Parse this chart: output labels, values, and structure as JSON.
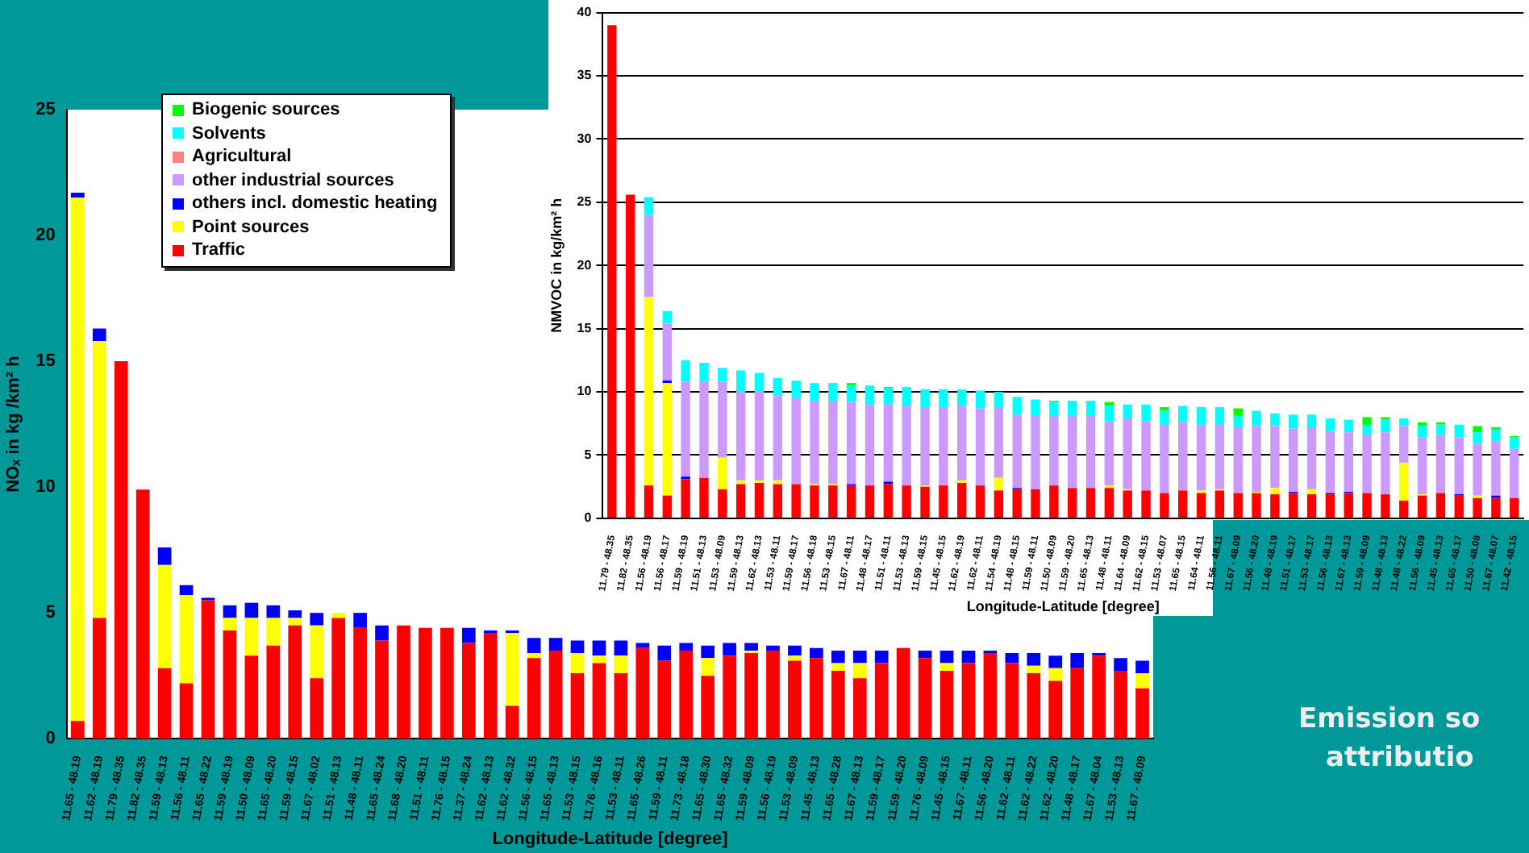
{
  "chart_data": [
    {
      "type": "bar",
      "stacked": true,
      "xlabel": "Longitude-Latitude [degree]",
      "ylabel": "NOₓ in kg /km² h",
      "ylim": [
        0,
        25
      ],
      "yticks": [
        0,
        5,
        10,
        15,
        20,
        25
      ],
      "legend": "top left",
      "categories": [
        "11.65 - 48.19",
        "11.62 - 48.19",
        "11.79 - 48.35",
        "11.82 - 48.35",
        "11.59 - 48.13",
        "11.56 - 48.11",
        "11.65 - 48.22",
        "11.59 - 48.19",
        "11.50 - 48.09",
        "11.65 - 48.20",
        "11.59 - 48.15",
        "11.67 - 48.02",
        "11.51 - 48.13",
        "11.48 - 48.11",
        "11.65 - 48.24",
        "11.68 - 48.20",
        "11.51 - 48.11",
        "11.76 - 48.15",
        "11.37 - 48.24",
        "11.62 - 48.13",
        "11.62 - 48.32",
        "11.56 - 48.15",
        "11.65 - 48.13",
        "11.53 - 48.15",
        "11.76 - 48.16",
        "11.53 - 48.11",
        "11.65 - 48.26",
        "11.59 - 48.11",
        "11.73 - 48.18",
        "11.65 - 48.30",
        "11.65 - 48.32",
        "11.59 - 48.09",
        "11.56 - 48.19",
        "11.53 - 48.09",
        "11.45 - 48.13",
        "11.65 - 48.28",
        "11.67 - 48.13",
        "11.59 - 48.17",
        "11.59 - 48.20",
        "11.76 - 48.09",
        "11.45 - 48.15",
        "11.67 - 48.11",
        "11.56 - 48.20",
        "11.62 - 48.11",
        "11.62 - 48.22",
        "11.62 - 48.20",
        "11.48 - 48.17",
        "11.67 - 48.04",
        "11.53 - 48.13",
        "11.67 - 48.09"
      ],
      "series": [
        {
          "name": "Traffic",
          "color": "#ff0000",
          "values": [
            0.7,
            4.8,
            15.0,
            9.9,
            2.8,
            2.2,
            5.5,
            4.3,
            3.3,
            3.7,
            4.5,
            2.4,
            4.8,
            4.4,
            3.9,
            4.5,
            4.4,
            4.4,
            3.8,
            4.2,
            1.3,
            3.2,
            3.5,
            2.6,
            3.0,
            2.6,
            3.6,
            3.1,
            3.5,
            2.5,
            3.3,
            3.4,
            3.5,
            3.1,
            3.2,
            2.7,
            2.4,
            3.0,
            3.6,
            3.2,
            2.7,
            3.0,
            3.4,
            3.0,
            2.6,
            2.3,
            2.8,
            3.3,
            2.7,
            2.0
          ]
        },
        {
          "name": "Point sources",
          "color": "#ffff00",
          "values": [
            20.8,
            11.0,
            null,
            null,
            4.1,
            3.5,
            null,
            0.5,
            1.5,
            1.1,
            0.3,
            2.1,
            0.2,
            null,
            null,
            null,
            null,
            null,
            null,
            null,
            2.9,
            0.2,
            null,
            0.8,
            0.3,
            0.7,
            null,
            null,
            null,
            0.7,
            null,
            0.1,
            null,
            0.2,
            null,
            0.3,
            0.6,
            null,
            null,
            null,
            0.3,
            null,
            null,
            null,
            0.3,
            0.5,
            null,
            null,
            null,
            0.6
          ]
        },
        {
          "name": "others incl. domestic heating",
          "color": "#0000ff",
          "values": [
            0.2,
            0.5,
            null,
            null,
            0.7,
            0.4,
            0.1,
            0.5,
            0.6,
            0.5,
            0.3,
            0.5,
            null,
            0.6,
            0.6,
            null,
            null,
            null,
            0.6,
            0.1,
            0.1,
            0.6,
            0.5,
            0.5,
            0.6,
            0.6,
            0.2,
            0.6,
            0.3,
            0.5,
            0.5,
            0.3,
            0.2,
            0.4,
            0.4,
            0.5,
            0.5,
            0.5,
            null,
            0.3,
            0.5,
            0.5,
            0.1,
            0.4,
            0.5,
            0.5,
            0.6,
            0.1,
            0.5,
            0.5
          ]
        },
        {
          "name": "other industrial sources",
          "color": "#cc99ff",
          "values": [
            null,
            null,
            null,
            null,
            null,
            null,
            null,
            null,
            null,
            null,
            null,
            null,
            null,
            null,
            null,
            null,
            null,
            null,
            null,
            null,
            null,
            null,
            null,
            null,
            null,
            null,
            null,
            null,
            null,
            null,
            null,
            null,
            null,
            null,
            null,
            null,
            null,
            null,
            null,
            null,
            null,
            null,
            null,
            null,
            null,
            null,
            null,
            null,
            null,
            null
          ]
        },
        {
          "name": "Agricultural",
          "color": "#ff8080",
          "values": [
            null,
            null,
            null,
            null,
            null,
            null,
            null,
            null,
            null,
            null,
            null,
            null,
            null,
            null,
            null,
            null,
            null,
            null,
            null,
            null,
            null,
            null,
            null,
            null,
            null,
            null,
            null,
            null,
            null,
            null,
            null,
            null,
            null,
            null,
            null,
            null,
            null,
            null,
            null,
            null,
            null,
            null,
            null,
            null,
            null,
            null,
            null,
            null,
            null,
            null
          ]
        },
        {
          "name": "Solvents",
          "color": "#00ffff",
          "values": [
            null,
            null,
            null,
            null,
            null,
            null,
            null,
            null,
            null,
            null,
            null,
            null,
            null,
            null,
            null,
            null,
            null,
            null,
            null,
            null,
            null,
            null,
            null,
            null,
            null,
            null,
            null,
            null,
            null,
            null,
            null,
            null,
            null,
            null,
            null,
            null,
            null,
            null,
            null,
            null,
            null,
            null,
            null,
            null,
            null,
            null,
            null,
            null,
            null,
            null
          ]
        },
        {
          "name": "Biogenic sources",
          "color": "#00ff00",
          "values": [
            null,
            null,
            null,
            null,
            null,
            null,
            null,
            null,
            null,
            null,
            null,
            null,
            null,
            null,
            null,
            null,
            null,
            null,
            null,
            null,
            null,
            null,
            null,
            null,
            null,
            null,
            null,
            null,
            null,
            null,
            null,
            null,
            null,
            null,
            null,
            null,
            null,
            null,
            null,
            null,
            null,
            null,
            null,
            null,
            null,
            null,
            null,
            null,
            null,
            null
          ]
        }
      ]
    },
    {
      "type": "bar",
      "stacked": true,
      "xlabel": "Longitude-Latitude [degree]",
      "ylabel": "NMVOC in kg/km² h",
      "ylim": [
        0,
        40
      ],
      "yticks": [
        0,
        5,
        10,
        15,
        20,
        25,
        30,
        35,
        40
      ],
      "grid": "y",
      "annotations": [
        "Emission so",
        "attributio"
      ],
      "categories": [
        "11.79 - 48.35",
        "11.82 - 48.35",
        "11.56 - 48.19",
        "11.56 - 48.17",
        "11.59 - 48.19",
        "11.51 - 48.13",
        "11.53 - 48.09",
        "11.59 - 48.13",
        "11.62 - 48.13",
        "11.53 - 48.11",
        "11.59 - 48.17",
        "11.56 - 48.18",
        "11.53 - 48.15",
        "11.67 - 48.11",
        "11.48 - 48.17",
        "11.51 - 48.11",
        "11.53 - 48.13",
        "11.59 - 48.15",
        "11.45 - 48.15",
        "11.62 - 48.19",
        "11.62 - 48.11",
        "11.54 - 48.19",
        "11.48 - 48.15",
        "11.59 - 48.11",
        "11.50 - 48.09",
        "11.59 - 48.20",
        "11.65 - 48.13",
        "11.48 - 48.11",
        "11.64 - 48.09",
        "11.62 - 48.15",
        "11.53 - 48.07",
        "11.65 - 48.15",
        "11.64 - 48.11",
        "11.56 - 48.11",
        "11.67 - 48.09",
        "11.56 - 48.20",
        "11.48 - 48.19",
        "11.51 - 48.17",
        "11.53 - 48.17",
        "11.56 - 48.13",
        "11.67 - 48.13",
        "11.59 - 48.09",
        "11.48 - 48.13",
        "11.48 - 48.22",
        "11.56 - 48.09",
        "11.45 - 48.13",
        "11.65 - 48.17",
        "11.50 - 48.08",
        "11.67 - 48.07",
        "11.42 - 48.15"
      ],
      "series": [
        {
          "color": "#ff0000",
          "values": [
            39.0,
            25.6,
            2.6,
            1.8,
            3.1,
            3.2,
            2.3,
            2.7,
            2.8,
            2.7,
            2.7,
            2.6,
            2.6,
            2.6,
            2.6,
            2.7,
            2.6,
            2.5,
            2.6,
            2.8,
            2.6,
            2.2,
            2.3,
            2.3,
            2.6,
            2.4,
            2.4,
            2.4,
            2.2,
            2.2,
            2.0,
            2.2,
            2.0,
            2.2,
            2.0,
            2.0,
            1.9,
            2.0,
            1.9,
            1.9,
            2.0,
            2.0,
            1.9,
            1.4,
            1.8,
            2.0,
            1.8,
            1.6,
            1.6,
            1.6
          ]
        },
        {
          "color": "#ffff00",
          "values": [
            null,
            null,
            14.9,
            8.9,
            null,
            null,
            2.5,
            0.3,
            0.2,
            0.3,
            null,
            0.1,
            0.1,
            null,
            null,
            null,
            null,
            0.1,
            null,
            0.2,
            null,
            1.0,
            null,
            null,
            null,
            null,
            null,
            0.2,
            0.1,
            null,
            null,
            null,
            0.2,
            0.1,
            null,
            0.1,
            0.5,
            null,
            0.4,
            null,
            null,
            null,
            null,
            3.0,
            0.1,
            null,
            null,
            0.2,
            null,
            null
          ]
        },
        {
          "color": "#0000ff",
          "values": [
            null,
            null,
            null,
            0.2,
            0.2,
            null,
            null,
            null,
            null,
            null,
            null,
            null,
            null,
            0.1,
            null,
            0.2,
            null,
            null,
            null,
            null,
            null,
            null,
            0.1,
            null,
            null,
            null,
            null,
            null,
            null,
            null,
            null,
            null,
            null,
            null,
            null,
            null,
            null,
            0.1,
            null,
            0.1,
            0.1,
            null,
            null,
            null,
            null,
            null,
            0.1,
            null,
            0.2,
            null
          ]
        },
        {
          "color": "#cc99ff",
          "values": [
            null,
            null,
            6.5,
            4.5,
            7.5,
            7.6,
            6.0,
            7.0,
            7.0,
            6.7,
            6.8,
            6.6,
            6.6,
            6.5,
            6.4,
            6.1,
            6.3,
            6.2,
            6.2,
            5.9,
            6.1,
            5.6,
            5.8,
            5.8,
            5.5,
            5.7,
            5.7,
            5.1,
            5.6,
            5.5,
            5.4,
            5.4,
            5.2,
            5.1,
            5.2,
            5.2,
            4.9,
            5.0,
            4.9,
            4.9,
            4.7,
            4.6,
            4.9,
            2.9,
            4.5,
            4.6,
            4.5,
            4.1,
            4.3,
            3.9
          ]
        },
        {
          "color": "#00ffff",
          "values": [
            null,
            null,
            1.4,
            1.0,
            1.7,
            1.5,
            1.1,
            1.7,
            1.5,
            1.4,
            1.4,
            1.4,
            1.4,
            1.3,
            1.5,
            1.3,
            1.5,
            1.4,
            1.4,
            1.3,
            1.4,
            1.2,
            1.4,
            1.3,
            1.1,
            1.2,
            1.2,
            1.2,
            1.1,
            1.3,
            1.1,
            1.3,
            1.4,
            1.4,
            0.9,
            1.2,
            1.0,
            1.1,
            1.0,
            1.0,
            1.0,
            0.8,
            1.0,
            0.6,
            0.9,
            0.8,
            1.0,
            0.9,
            0.9,
            0.9
          ]
        },
        {
          "color": "#00ff00",
          "values": [
            null,
            null,
            null,
            null,
            null,
            null,
            null,
            null,
            null,
            null,
            null,
            null,
            null,
            0.2,
            null,
            0.1,
            null,
            null,
            null,
            null,
            null,
            null,
            null,
            null,
            0.1,
            null,
            null,
            0.3,
            null,
            null,
            0.3,
            null,
            null,
            null,
            0.6,
            null,
            null,
            null,
            null,
            null,
            null,
            0.6,
            0.2,
            null,
            0.3,
            0.2,
            null,
            0.5,
            0.2,
            0.1
          ]
        }
      ]
    }
  ]
}
